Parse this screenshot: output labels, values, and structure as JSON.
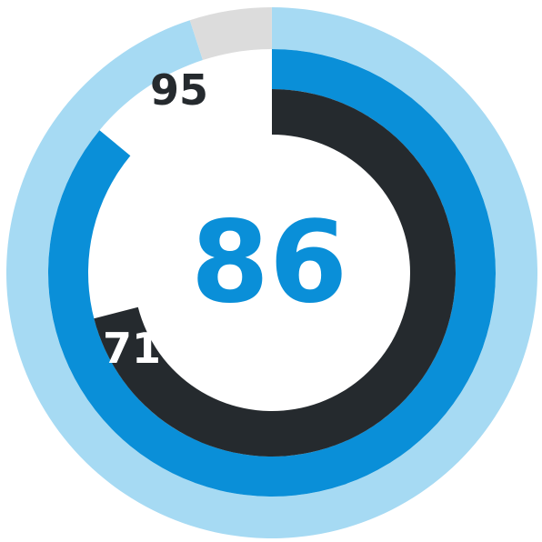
{
  "chart_data": {
    "type": "radial-gauge",
    "max": 100,
    "center_value": "86",
    "rings": [
      {
        "value": 95,
        "label": "95",
        "color": "#a6daf3",
        "remainder_color": "#dcdcdc"
      },
      {
        "value": 86,
        "color": "#0a8fd8"
      },
      {
        "value": 71,
        "label": "71",
        "color": "#252a2e"
      }
    ]
  },
  "colors": {
    "center_text": "#0a8fd8",
    "label_text": "#252a2e",
    "inner_label_text": "#ffffff"
  }
}
